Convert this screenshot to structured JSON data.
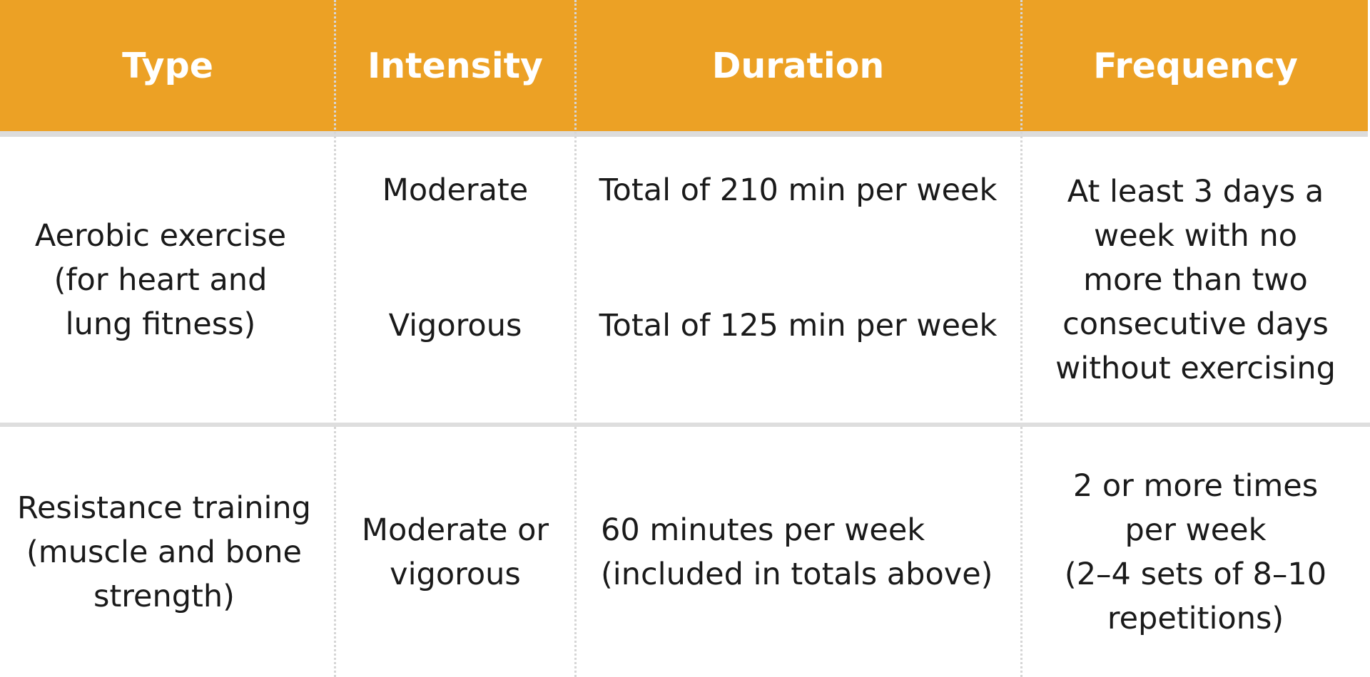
{
  "header": {
    "type": "Type",
    "intensity": "Intensity",
    "duration": "Duration",
    "frequency": "Frequency"
  },
  "rows": [
    {
      "type": "Aerobic exercise\n(for heart and\nlung fitness)",
      "intensity_1": "Moderate",
      "duration_1": "Total of 210 min per week",
      "intensity_2": "Vigorous",
      "duration_2": "Total of 125 min per week",
      "frequency": "At least 3 days a\nweek with no\nmore than two\nconsecutive days\nwithout exercising"
    },
    {
      "type": "Resistance training\n(muscle and bone\nstrength)",
      "intensity": "Moderate or\nvigorous",
      "duration": "60 minutes per week\n(included in totals above)",
      "frequency": "2 or more times\nper week\n(2–4 sets of 8–10\nrepetitions)"
    }
  ],
  "colors": {
    "header_bg": "#eca125",
    "header_text": "#ffffff",
    "body_text": "#1a1a1a",
    "divider": "#d6d6d6"
  }
}
